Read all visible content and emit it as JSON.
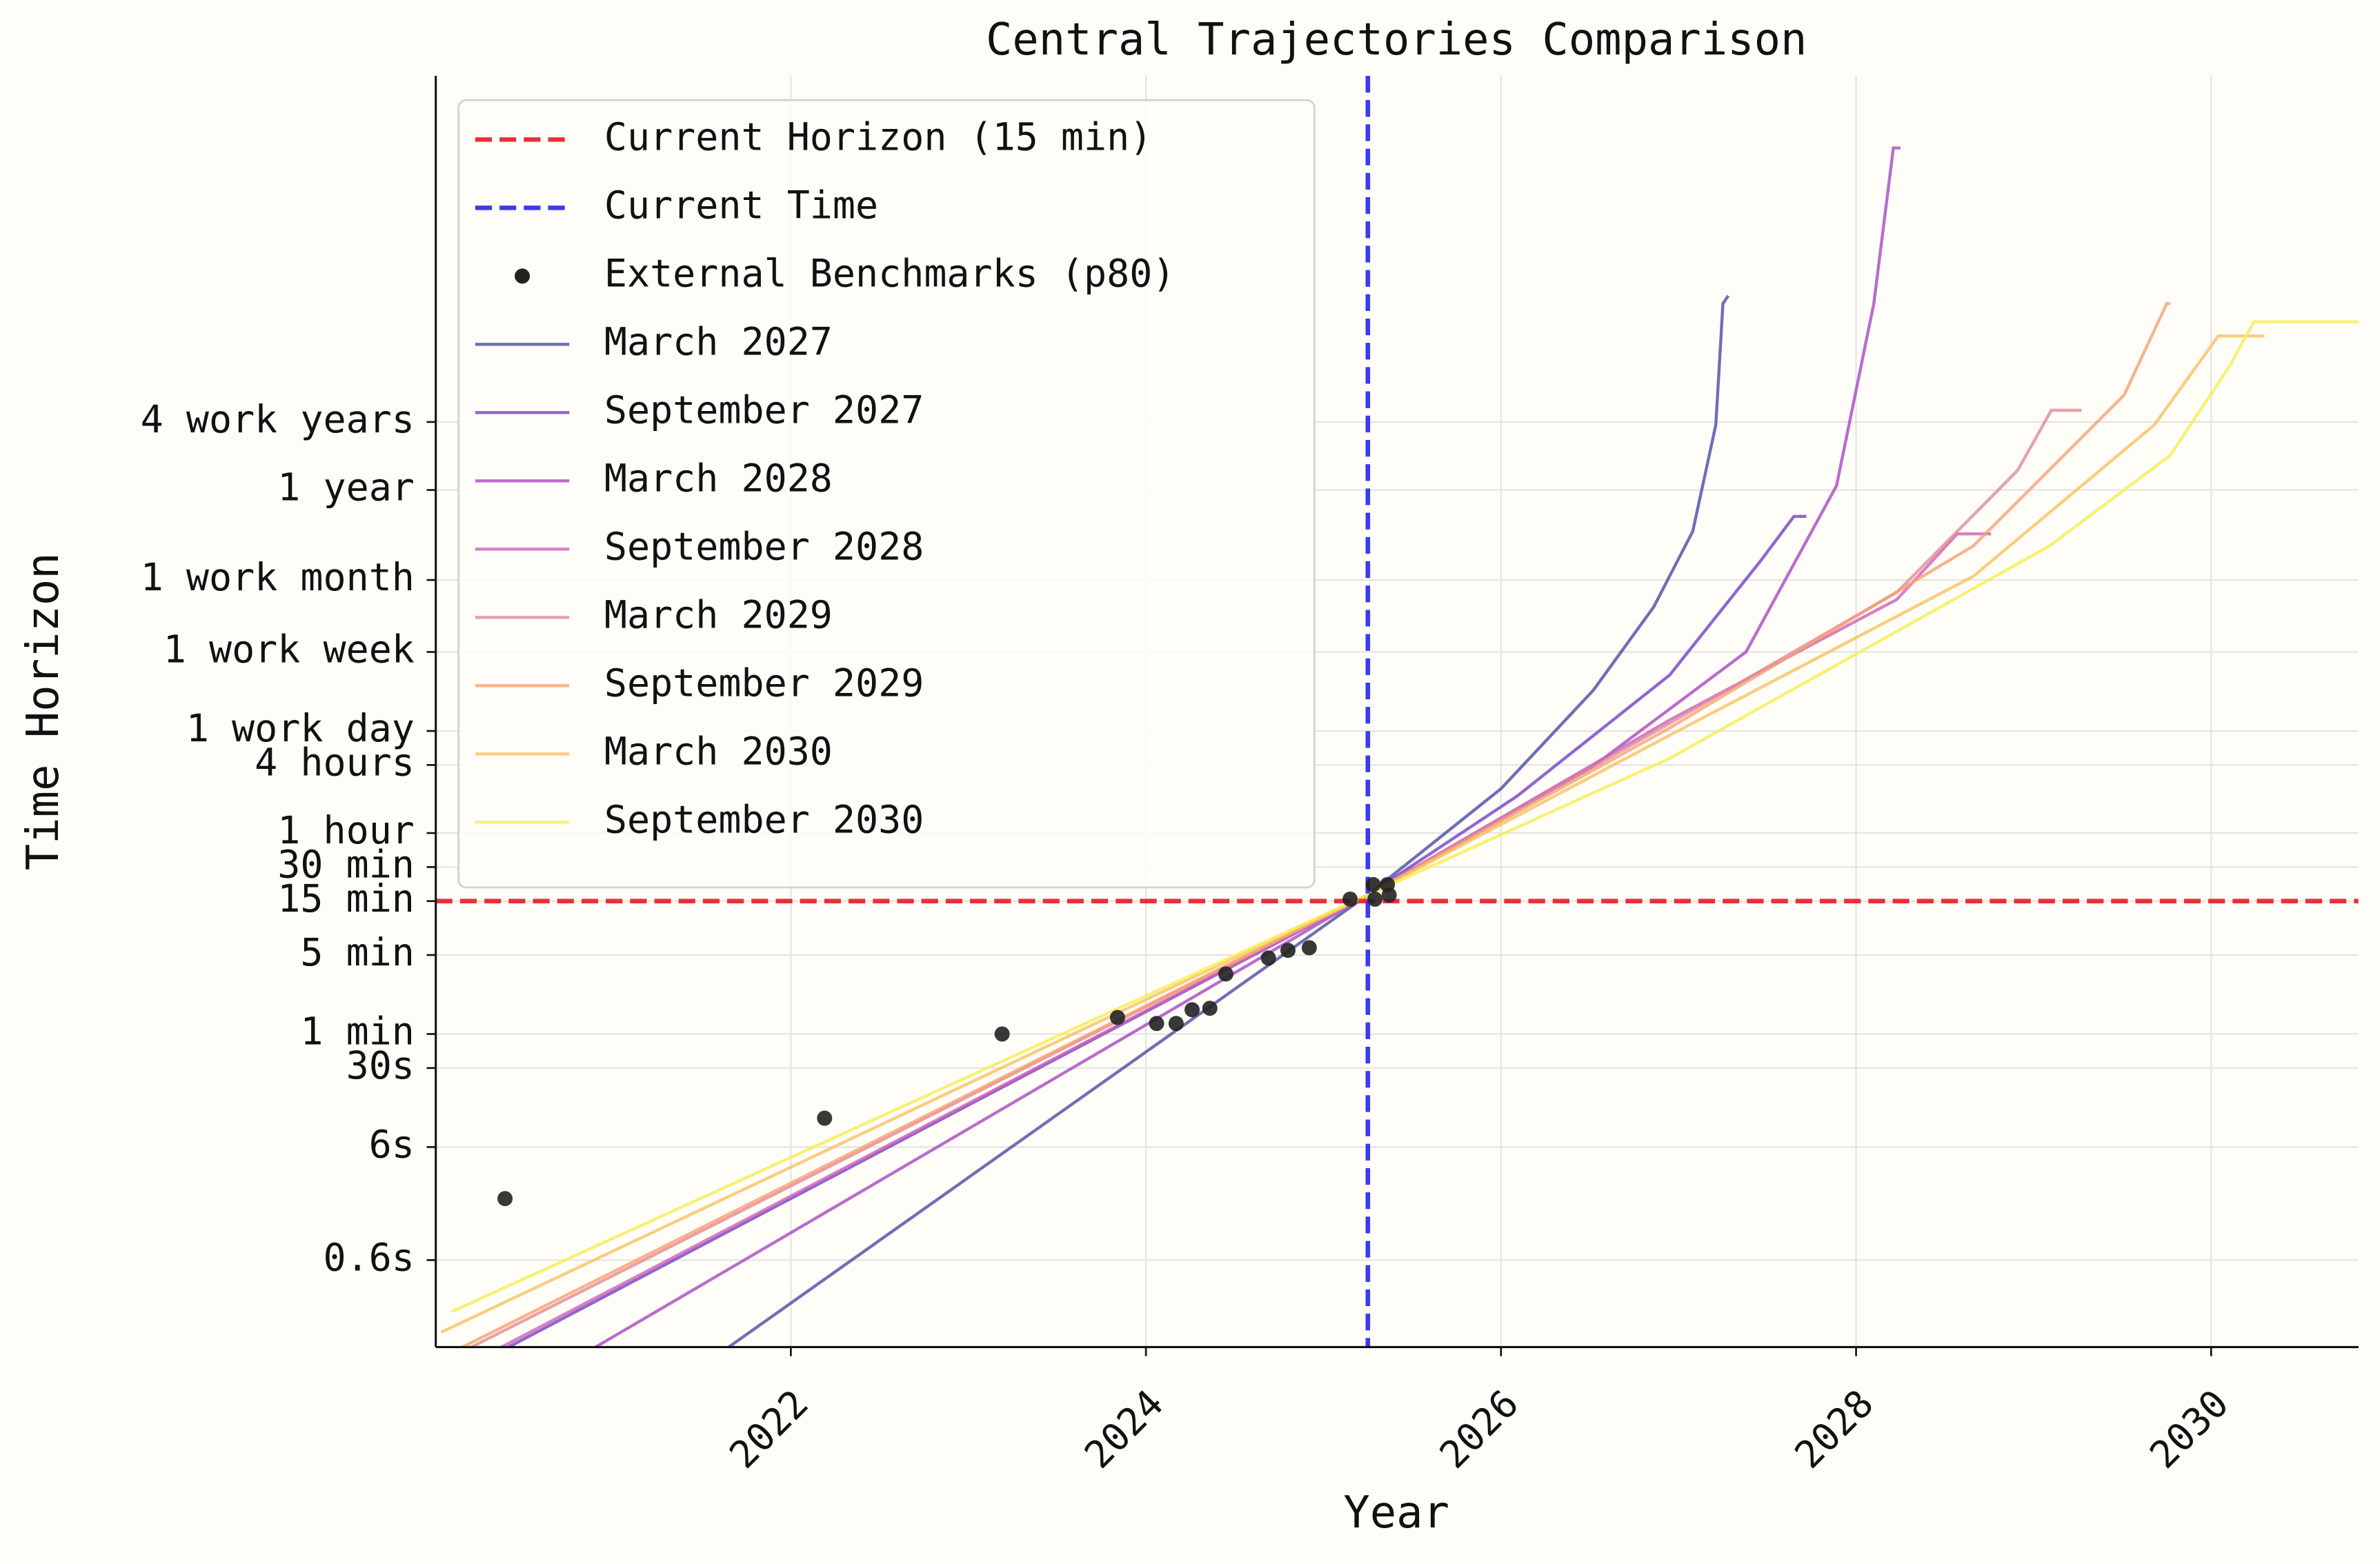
{
  "chart_data": {
    "type": "line",
    "title": "Central Trajectories Comparison",
    "x_label": "Year",
    "y_label": "Time Horizon",
    "y_scale": "log",
    "grid": true,
    "legend": "upper left",
    "xlim": [
      2020.0,
      2030.83
    ],
    "ylim": [
      0.0017,
      300000000
    ],
    "xticks": [
      2022,
      2024,
      2026,
      2028,
      2030
    ],
    "yticks": [
      {
        "value": 0.01,
        "label": "0.6s"
      },
      {
        "value": 0.1,
        "label": "6s"
      },
      {
        "value": 0.5,
        "label": "30s"
      },
      {
        "value": 1,
        "label": "1 min"
      },
      {
        "value": 5,
        "label": "5 min"
      },
      {
        "value": 15,
        "label": "15 min"
      },
      {
        "value": 30,
        "label": "30 min"
      },
      {
        "value": 60,
        "label": "1 hour"
      },
      {
        "value": 240,
        "label": "4 hours"
      },
      {
        "value": 480,
        "label": "1 work day"
      },
      {
        "value": 2400,
        "label": "1 work week"
      },
      {
        "value": 10400,
        "label": "1 work month"
      },
      {
        "value": 65000,
        "label": "1 year"
      },
      {
        "value": 260000,
        "label": "4 work years"
      }
    ],
    "reference_lines": [
      {
        "name": "Current Horizon (15 min)",
        "axis": "y",
        "value": 15,
        "color": "#e8303a"
      },
      {
        "name": "Current Time",
        "axis": "x",
        "value": 2025.25,
        "color": "#3a3aee"
      }
    ],
    "benchmarks": {
      "name": "External Benchmarks (p80)",
      "color": "#222222",
      "x": [
        2020.39,
        2022.19,
        2023.19,
        2023.84,
        2024.06,
        2024.17,
        2024.26,
        2024.36,
        2024.45,
        2024.69,
        2024.8,
        2024.92,
        2025.15,
        2025.28,
        2025.29,
        2025.36,
        2025.37
      ],
      "y": [
        0.035,
        0.18,
        1,
        1.4,
        1.24,
        1.24,
        1.64,
        1.69,
        3.4,
        4.7,
        5.5,
        5.8,
        15.6,
        21,
        15.6,
        21,
        17
      ]
    },
    "series": [
      {
        "name": "March 2027",
        "color": "#4b4ba5",
        "x": [
          2021.65,
          2025.25,
          2026.0,
          2026.52,
          2026.86,
          2027.08,
          2027.21,
          2027.25,
          2027.28
        ],
        "values": [
          0.0017,
          17,
          148,
          1100,
          6000,
          28000,
          245000,
          2900000,
          3400000
        ]
      },
      {
        "name": "September 2027",
        "color": "#7440c4",
        "x": [
          2020.41,
          2025.25,
          2026.09,
          2026.95,
          2027.46,
          2027.65,
          2027.72
        ],
        "values": [
          0.0017,
          17,
          127,
          1500,
          15200,
          38000,
          38000
        ]
      },
      {
        "name": "March 2028",
        "color": "#a848c0",
        "x": [
          2020.9,
          2025.25,
          2026.52,
          2027.38,
          2027.89,
          2028.1,
          2028.21,
          2028.25
        ],
        "values": [
          0.0017,
          17,
          235,
          2400,
          71000,
          2900000,
          69000000,
          69000000
        ]
      },
      {
        "name": "September 2028",
        "color": "#cc60b8",
        "x": [
          2020.37,
          2025.25,
          2026.95,
          2028.23,
          2028.57,
          2028.76
        ],
        "values": [
          0.0017,
          17,
          600,
          7000,
          26600,
          26600
        ]
      },
      {
        "name": "March 2029",
        "color": "#e08898",
        "x": [
          2020.2,
          2025.25,
          2026.95,
          2028.23,
          2028.91,
          2029.1,
          2029.27
        ],
        "values": [
          0.0017,
          17,
          560,
          8100,
          97000,
          330000,
          330000
        ]
      },
      {
        "name": "September 2029",
        "color": "#f8a070",
        "x": [
          2020.15,
          2025.25,
          2026.95,
          2028.66,
          2029.51,
          2029.75,
          2029.77
        ],
        "values": [
          0.0017,
          17,
          510,
          20800,
          450000,
          2900000,
          2900000
        ]
      },
      {
        "name": "March 2030",
        "color": "#f8c060",
        "x": [
          2020.03,
          2025.25,
          2026.95,
          2028.66,
          2029.68,
          2030.04,
          2030.3
        ],
        "values": [
          0.0023,
          17,
          440,
          11200,
          245000,
          1500000,
          1500000
        ]
      },
      {
        "name": "September 2030",
        "color": "#f6ee50",
        "x": [
          2020.09,
          2025.25,
          2026.95,
          2029.09,
          2029.77,
          2030.11,
          2030.24,
          2030.83
        ],
        "values": [
          0.0035,
          17,
          275,
          20800,
          132000,
          840000,
          2000000,
          2000000
        ]
      }
    ]
  }
}
